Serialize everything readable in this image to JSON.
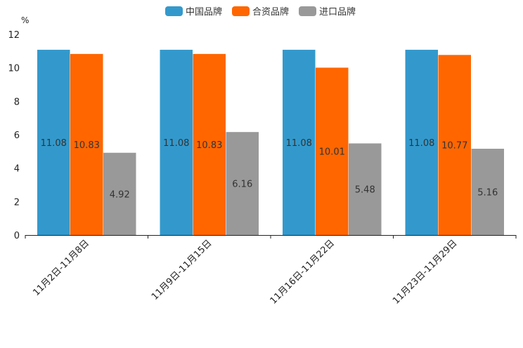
{
  "chart_data": {
    "type": "bar",
    "ylabel": "%",
    "ylim": [
      0,
      12
    ],
    "yticks": [
      0,
      2,
      4,
      6,
      8,
      10,
      12
    ],
    "legend_position": "top-center",
    "categories": [
      "11月2日-11月8日",
      "11月9日-11月15日",
      "11月16日-11月22日",
      "11月23日-11月29日"
    ],
    "series": [
      {
        "name": "中国品牌",
        "color": "#3399cc",
        "values": [
          11.08,
          11.08,
          11.08,
          11.08
        ],
        "labels": [
          "11.08",
          "11.08",
          "11.08",
          "11.08"
        ]
      },
      {
        "name": "合资品牌",
        "color": "#ff6600",
        "values": [
          10.83,
          10.83,
          10.01,
          10.77
        ],
        "labels": [
          "10.83",
          "10.83",
          "10.01",
          "10.77"
        ]
      },
      {
        "name": "进口品牌",
        "color": "#999999",
        "values": [
          4.92,
          6.16,
          5.48,
          5.16
        ],
        "labels": [
          "4.92",
          "6.16",
          "5.48",
          "5.16"
        ]
      }
    ]
  }
}
